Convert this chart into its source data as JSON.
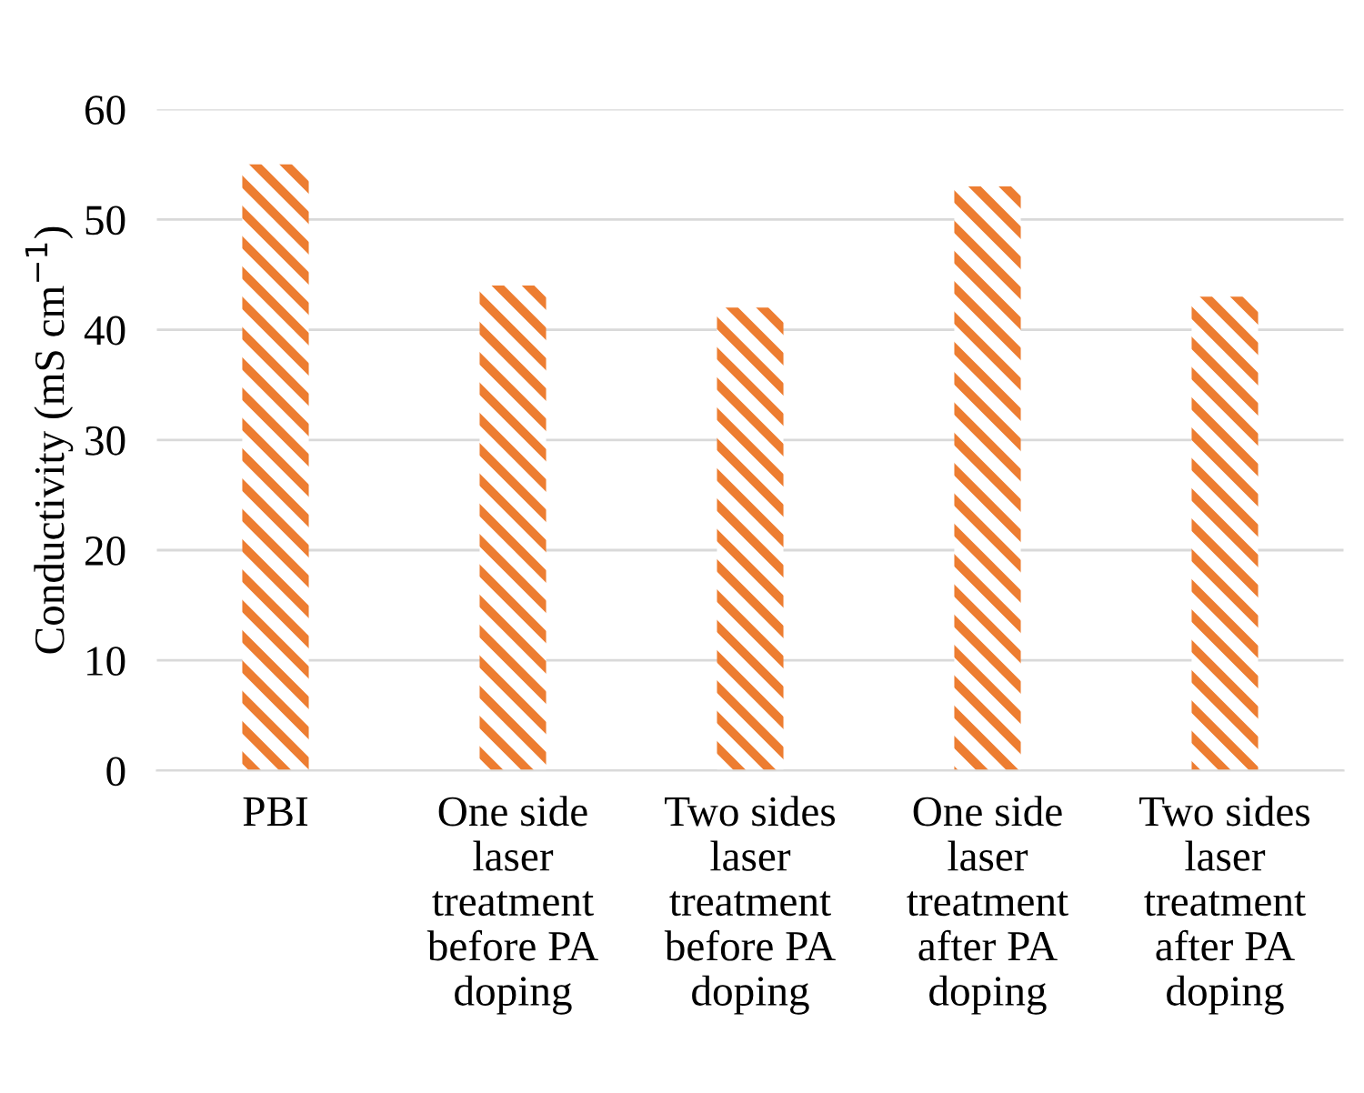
{
  "chart_data": {
    "type": "bar",
    "ylabel": "Conductivity (mS cm$^{−1}$)",
    "categories": [
      "PBI",
      "One side laser treatment before PA doping",
      "Two sides laser treatment before PA doping",
      "One side laser treatment after PA doping",
      "Two sides laser treatment after PA doping"
    ],
    "values": [
      55,
      44,
      42,
      53,
      43
    ],
    "color": "#ed7d31",
    "ylim": [
      0,
      60
    ],
    "yticks": [
      0,
      10,
      20,
      30,
      40,
      50,
      60
    ],
    "grid": "y"
  }
}
